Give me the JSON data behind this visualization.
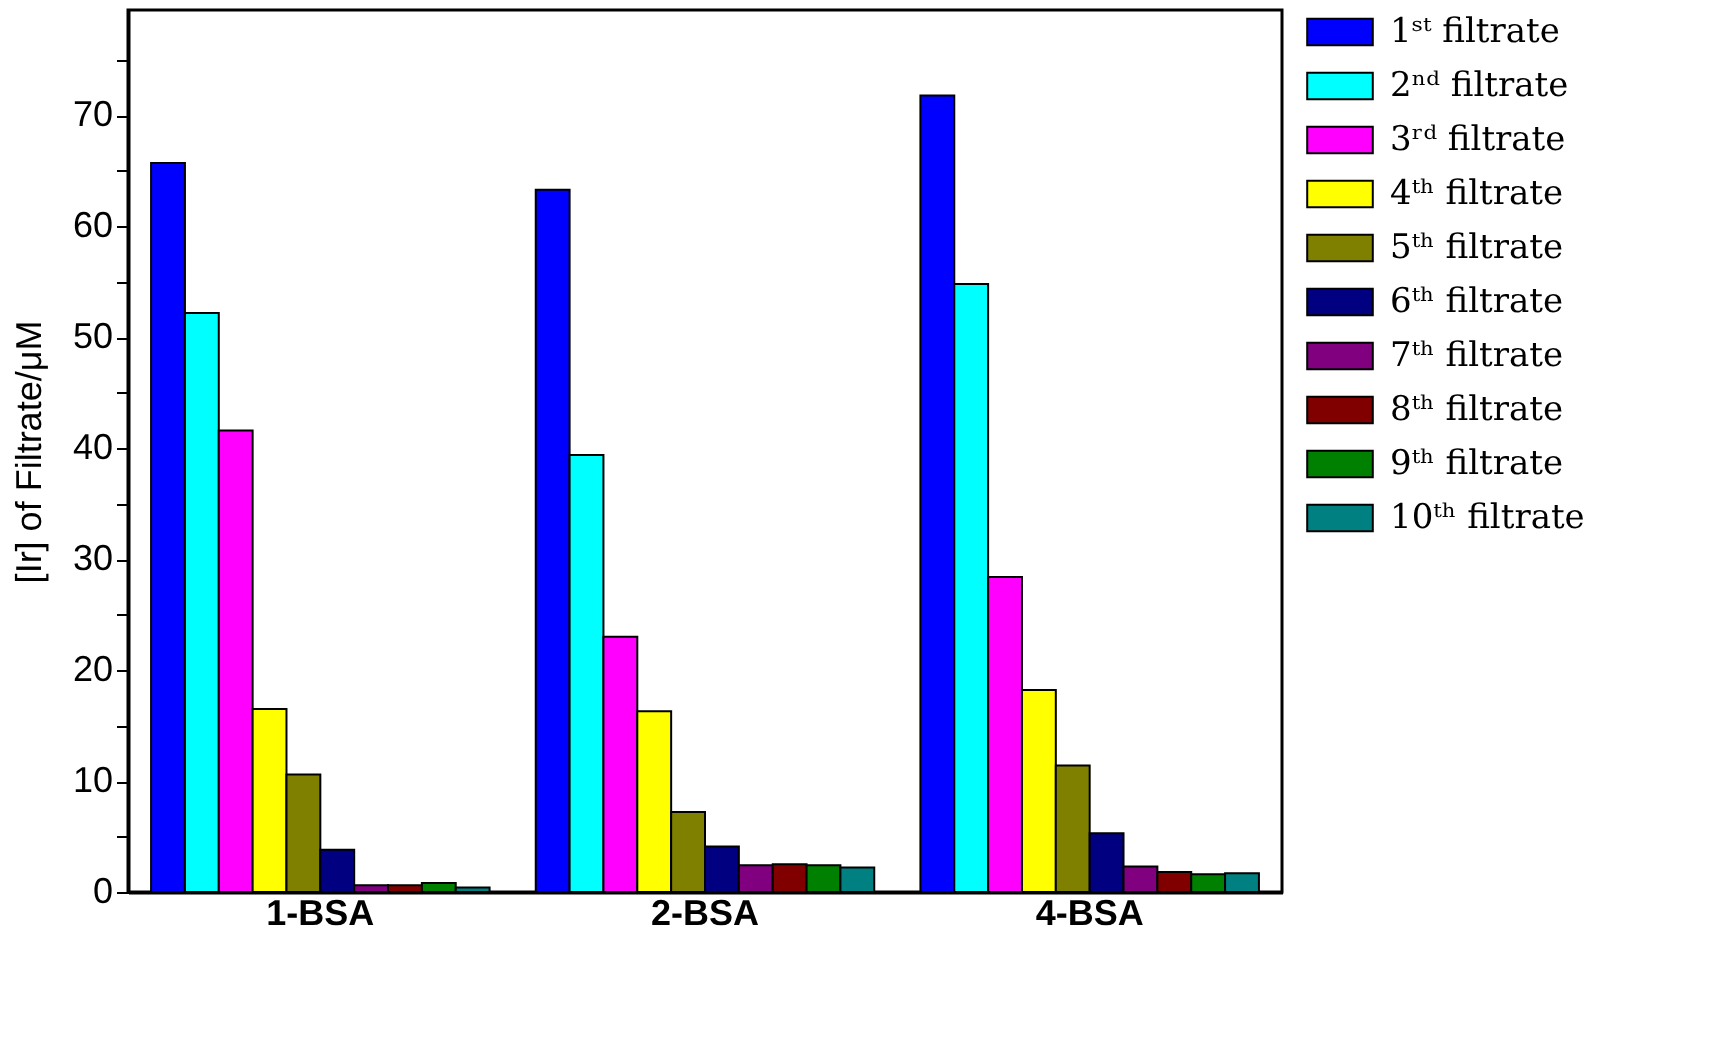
{
  "chart_data": {
    "type": "bar",
    "ylabel": "[Ir] of Filtrate/μM",
    "categories": [
      "1-BSA",
      "2-BSA",
      "4-BSA"
    ],
    "series": [
      {
        "name": "1ˢᵗ filtrate",
        "color": "#0000ff",
        "values": [
          65.7,
          63.3,
          71.8
        ]
      },
      {
        "name": "2ⁿᵈ filtrate",
        "color": "#00ffff",
        "values": [
          52.2,
          39.4,
          54.8
        ]
      },
      {
        "name": "3ʳᵈ filtrate",
        "color": "#ff00ff",
        "values": [
          41.6,
          23.0,
          28.4
        ]
      },
      {
        "name": "4ᵗʰ filtrate",
        "color": "#ffff00",
        "values": [
          16.5,
          16.3,
          18.2
        ]
      },
      {
        "name": "5ᵗʰ filtrate",
        "color": "#808000",
        "values": [
          10.6,
          7.2,
          11.4
        ]
      },
      {
        "name": "6ᵗʰ filtrate",
        "color": "#000080",
        "values": [
          3.8,
          4.1,
          5.3
        ]
      },
      {
        "name": "7ᵗʰ filtrate",
        "color": "#800080",
        "values": [
          0.6,
          2.4,
          2.3
        ]
      },
      {
        "name": "8ᵗʰ filtrate",
        "color": "#800000",
        "values": [
          0.6,
          2.5,
          1.8
        ]
      },
      {
        "name": "9ᵗʰ filtrate",
        "color": "#008000",
        "values": [
          0.8,
          2.4,
          1.6
        ]
      },
      {
        "name": "10ᵗʰ filtrate",
        "color": "#008080",
        "values": [
          0.4,
          2.2,
          1.7
        ]
      }
    ],
    "ylim": [
      0,
      79.5
    ],
    "yticks": [
      0,
      {
        "value": 5,
        "label": null
      },
      10,
      {
        "value": 15,
        "label": null
      },
      20,
      {
        "value": 25,
        "label": null
      },
      30,
      {
        "value": 35,
        "label": null
      },
      40,
      {
        "value": 45,
        "label": null
      },
      50,
      {
        "value": 55,
        "label": null
      },
      60,
      {
        "value": 65,
        "label": null
      },
      70,
      {
        "value": 75,
        "label": null
      }
    ],
    "grid": false,
    "legend": "right"
  }
}
